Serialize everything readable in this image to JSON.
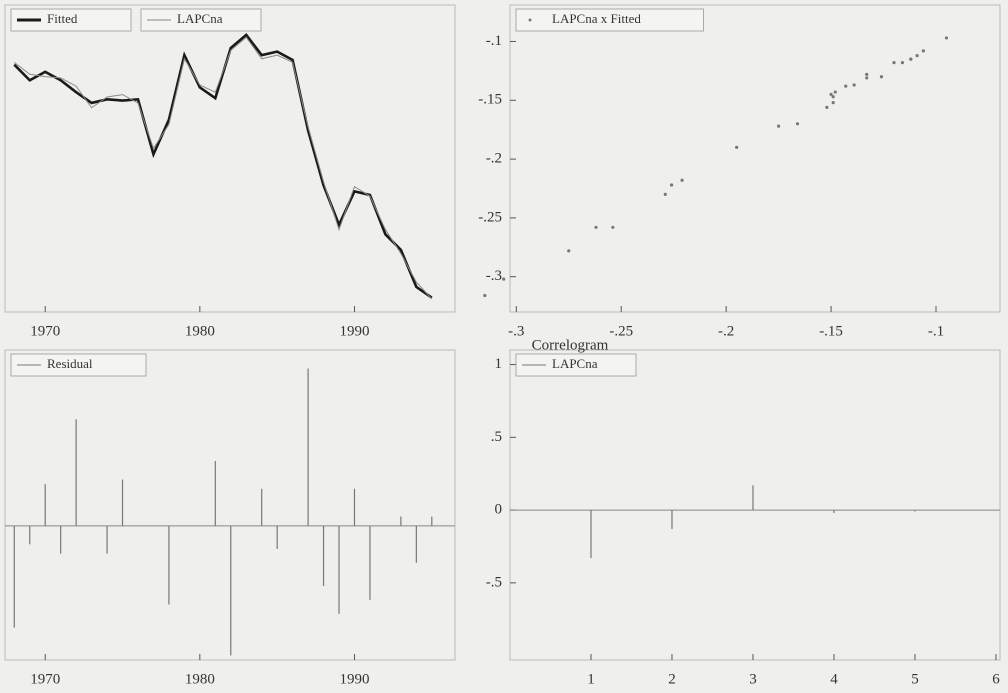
{
  "chart_data": [
    {
      "type": "line",
      "x": [
        1968,
        1969,
        1970,
        1971,
        1972,
        1973,
        1974,
        1975,
        1976,
        1977,
        1978,
        1979,
        1980,
        1981,
        1982,
        1983,
        1984,
        1985,
        1986,
        1987,
        1988,
        1989,
        1990,
        1991,
        1992,
        1993,
        1994,
        1995
      ],
      "series": [
        {
          "name": "Fitted",
          "color": "#1a1a1a",
          "values": [
            -0.12,
            -0.133,
            -0.126,
            -0.133,
            -0.143,
            -0.152,
            -0.149,
            -0.15,
            -0.149,
            -0.195,
            -0.166,
            -0.112,
            -0.139,
            -0.148,
            -0.106,
            -0.095,
            -0.112,
            -0.109,
            -0.116,
            -0.175,
            -0.221,
            -0.254,
            -0.226,
            -0.229,
            -0.262,
            -0.275,
            -0.306,
            -0.315
          ]
        },
        {
          "name": "LAPCna",
          "color": "#888888",
          "values": [
            -0.118,
            -0.128,
            -0.13,
            -0.131,
            -0.138,
            -0.156,
            -0.147,
            -0.145,
            -0.152,
            -0.19,
            -0.17,
            -0.115,
            -0.137,
            -0.143,
            -0.108,
            -0.097,
            -0.115,
            -0.112,
            -0.118,
            -0.172,
            -0.218,
            -0.258,
            -0.222,
            -0.23,
            -0.258,
            -0.278,
            -0.302,
            -0.316
          ]
        }
      ],
      "xlim": [
        1967.4,
        1996.5
      ],
      "xticks": [
        1970,
        1980,
        1990
      ],
      "ylim": [
        -0.327,
        -0.07
      ]
    },
    {
      "type": "scatter",
      "x": [
        -0.12,
        -0.133,
        -0.126,
        -0.133,
        -0.143,
        -0.152,
        -0.149,
        -0.15,
        -0.149,
        -0.195,
        -0.166,
        -0.112,
        -0.139,
        -0.148,
        -0.106,
        -0.095,
        -0.112,
        -0.109,
        -0.116,
        -0.175,
        -0.221,
        -0.254,
        -0.226,
        -0.229,
        -0.262,
        -0.275,
        -0.306,
        -0.315
      ],
      "series": [
        {
          "name": "LAPCna x Fitted",
          "color": "#777777",
          "values": [
            -0.118,
            -0.128,
            -0.13,
            -0.131,
            -0.138,
            -0.156,
            -0.147,
            -0.145,
            -0.152,
            -0.19,
            -0.17,
            -0.115,
            -0.137,
            -0.143,
            -0.108,
            -0.097,
            -0.115,
            -0.112,
            -0.118,
            -0.172,
            -0.218,
            -0.258,
            -0.222,
            -0.23,
            -0.258,
            -0.278,
            -0.302,
            -0.316
          ]
        }
      ],
      "xlim": [
        -0.303,
        -0.0695
      ],
      "xticks": [
        {
          "value": -0.3,
          "label": "-.3"
        },
        {
          "value": -0.25,
          "label": "-.25"
        },
        {
          "value": -0.2,
          "label": "-.2"
        },
        {
          "value": -0.15,
          "label": "-.15"
        },
        {
          "value": -0.1,
          "label": "-.1"
        }
      ],
      "ylim": [
        -0.33,
        -0.069
      ],
      "yticks": [
        {
          "value": -0.3,
          "label": "-.3"
        },
        {
          "value": -0.25,
          "label": "-.25"
        },
        {
          "value": -0.2,
          "label": "-.2"
        },
        {
          "value": -0.15,
          "label": "-.15"
        },
        {
          "value": -0.1,
          "label": "-.1"
        }
      ]
    },
    {
      "type": "bar",
      "x": [
        1968,
        1969,
        1970,
        1971,
        1972,
        1973,
        1974,
        1975,
        1976,
        1977,
        1978,
        1979,
        1980,
        1981,
        1982,
        1983,
        1984,
        1985,
        1986,
        1987,
        1988,
        1989,
        1990,
        1991,
        1992,
        1993,
        1994,
        1995
      ],
      "series": [
        {
          "name": "Residual",
          "color": "#777777",
          "values": [
            -1.1,
            -0.2,
            0.45,
            -0.3,
            1.15,
            0,
            -0.3,
            0.5,
            0,
            0,
            -0.85,
            0,
            0,
            0.7,
            -1.4,
            0,
            0.4,
            -0.25,
            0,
            1.7,
            -0.65,
            -0.95,
            0.4,
            -0.8,
            0,
            0.1,
            -0.4,
            0.1
          ]
        }
      ],
      "xlim": [
        1967.4,
        1996.5
      ],
      "xticks": [
        1970,
        1980,
        1990
      ],
      "ylim": [
        -1.45,
        1.9
      ]
    },
    {
      "type": "bar",
      "title": "Correlogram",
      "x": [
        1,
        2,
        3,
        4,
        5,
        6
      ],
      "series": [
        {
          "name": "LAPCna",
          "color": "#777777",
          "values": [
            -0.33,
            -0.13,
            0.17,
            -0.02,
            -0.01,
            0
          ]
        }
      ],
      "xlim": [
        0,
        6.05
      ],
      "xticks": [
        1,
        2,
        3,
        4,
        5,
        6
      ],
      "ylim": [
        -1.03,
        1.1
      ],
      "yticks": [
        {
          "value": -0.5,
          "label": "-.5"
        },
        0,
        {
          "value": 0.5,
          "label": ".5"
        },
        1
      ]
    }
  ]
}
